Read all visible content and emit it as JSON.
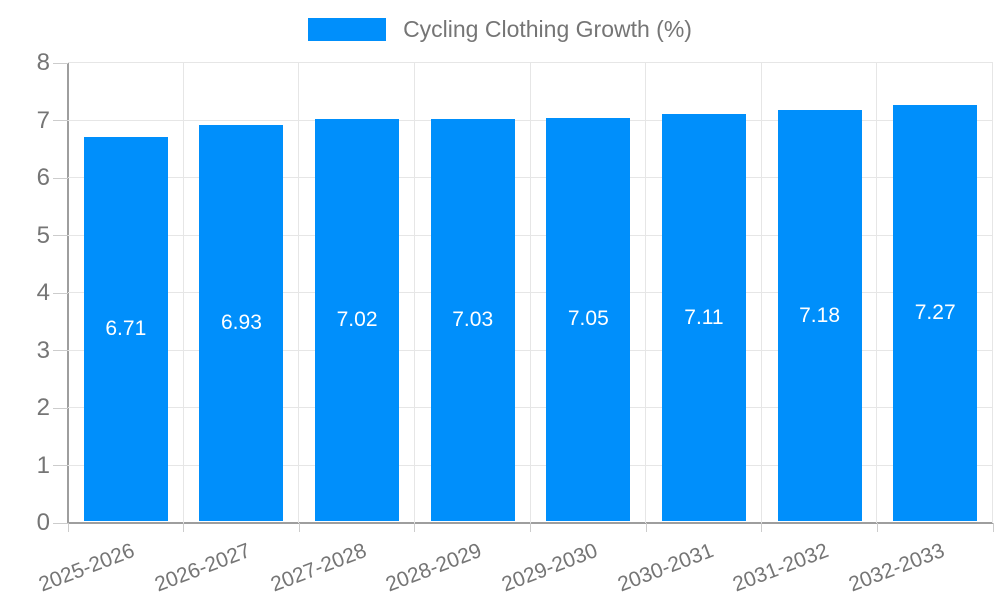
{
  "chart_data": {
    "type": "bar",
    "title": "Cycling Clothing Growth (%)",
    "categories": [
      "2025-2026",
      "2026-2027",
      "2027-2028",
      "2028-2029",
      "2029-2030",
      "2030-2031",
      "2031-2032",
      "2032-2033"
    ],
    "values": [
      6.71,
      6.93,
      7.02,
      7.03,
      7.05,
      7.11,
      7.18,
      7.27
    ],
    "value_labels": [
      "6.71",
      "6.93",
      "7.02",
      "7.03",
      "7.05",
      "7.11",
      "7.18",
      "7.27"
    ],
    "xlabel": "",
    "ylabel": "",
    "ylim": [
      0,
      8
    ],
    "yticks": [
      0,
      1,
      2,
      3,
      4,
      5,
      6,
      7,
      8
    ],
    "grid": true,
    "legend_position": "top",
    "colors": {
      "bar": "#008FFB",
      "grid": "#e6e6e6",
      "axis": "#9e9e9e",
      "tick": "#cccccc",
      "text": "#757575",
      "value_label": "#ffffff",
      "background": "#ffffff"
    }
  },
  "legend": {
    "label": "Cycling Clothing Growth (%)"
  }
}
